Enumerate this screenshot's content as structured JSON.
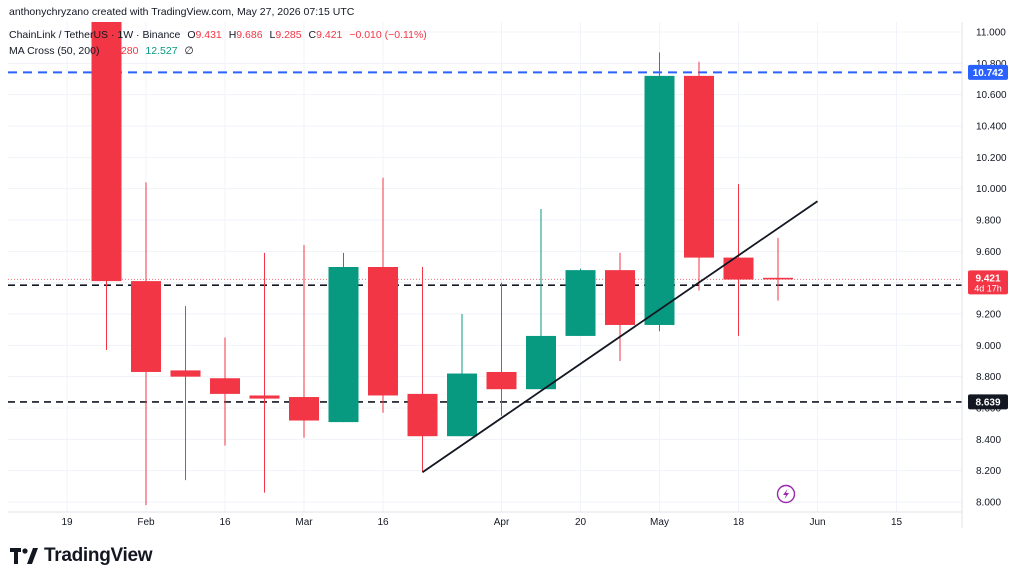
{
  "header": {
    "created_by": "anthonychryzano created with TradingView.com, May 27, 2026 07:15 UTC",
    "symbol": "ChainLink / TetherUS · 1W · Binance",
    "ohlc": {
      "o_label": "O",
      "o_value": "9.431",
      "h_label": "H",
      "h_value": "9.686",
      "l_label": "L",
      "l_value": "9.285",
      "c_label": "C",
      "c_value": "9.421",
      "change": "−0.010 (−0.11%)"
    },
    "indicator": {
      "name": "MA Cross (50, 200)",
      "value1": "14.280",
      "value2": "12.527",
      "value3": "∅"
    }
  },
  "footer": {
    "brand": "TradingView"
  },
  "colors": {
    "up": "#089981",
    "down": "#f23645",
    "blue_line": "#2962ff",
    "dash": "#131722",
    "grid": "#f0f3fa",
    "axis_text": "#131722"
  },
  "chart_data": {
    "type": "candlestick",
    "ylim": [
      7.96,
      11.05
    ],
    "y_ticks": [
      "11.000",
      "10.800",
      "10.600",
      "10.400",
      "10.200",
      "10.000",
      "9.800",
      "9.600",
      "9.400",
      "9.200",
      "9.000",
      "8.800",
      "8.600",
      "8.400",
      "8.200",
      "8.000"
    ],
    "x_ticks": [
      {
        "label": "19",
        "x": 0
      },
      {
        "label": "Feb",
        "x": 2
      },
      {
        "label": "16",
        "x": 4
      },
      {
        "label": "Mar",
        "x": 6
      },
      {
        "label": "16",
        "x": 8
      },
      {
        "label": "Apr",
        "x": 11
      },
      {
        "label": "20",
        "x": 13
      },
      {
        "label": "May",
        "x": 15
      },
      {
        "label": "18",
        "x": 17
      },
      {
        "label": "Jun",
        "x": 19
      },
      {
        "label": "15",
        "x": 21
      }
    ],
    "candles": [
      {
        "x": 1,
        "o": 11.15,
        "h": 11.25,
        "l": 8.97,
        "c": 9.41
      },
      {
        "x": 2,
        "o": 9.41,
        "h": 10.04,
        "l": 7.98,
        "c": 8.83
      },
      {
        "x": 3,
        "o": 8.84,
        "h": 9.25,
        "l": 8.14,
        "c": 8.8
      },
      {
        "x": 4,
        "o": 8.79,
        "h": 9.05,
        "l": 8.36,
        "c": 8.69
      },
      {
        "x": 5,
        "o": 8.68,
        "h": 9.59,
        "l": 8.06,
        "c": 8.66
      },
      {
        "x": 6,
        "o": 8.67,
        "h": 9.64,
        "l": 8.41,
        "c": 8.52
      },
      {
        "x": 7,
        "o": 8.51,
        "h": 9.59,
        "l": 8.51,
        "c": 9.5
      },
      {
        "x": 8,
        "o": 9.5,
        "h": 10.07,
        "l": 8.57,
        "c": 8.68
      },
      {
        "x": 9,
        "o": 8.69,
        "h": 9.5,
        "l": 8.19,
        "c": 8.42
      },
      {
        "x": 10,
        "o": 8.42,
        "h": 9.2,
        "l": 8.42,
        "c": 8.82
      },
      {
        "x": 11,
        "o": 8.83,
        "h": 9.4,
        "l": 8.55,
        "c": 8.72
      },
      {
        "x": 12,
        "o": 8.72,
        "h": 9.87,
        "l": 8.72,
        "c": 9.06
      },
      {
        "x": 13,
        "o": 9.06,
        "h": 9.49,
        "l": 9.06,
        "c": 9.48
      },
      {
        "x": 14,
        "o": 9.48,
        "h": 9.59,
        "l": 8.9,
        "c": 9.13
      },
      {
        "x": 15,
        "o": 9.13,
        "h": 10.87,
        "l": 9.09,
        "c": 10.72
      },
      {
        "x": 16,
        "o": 10.72,
        "h": 10.81,
        "l": 9.35,
        "c": 9.56
      },
      {
        "x": 17,
        "o": 9.56,
        "h": 10.03,
        "l": 9.06,
        "c": 9.42
      },
      {
        "x": 18,
        "o": 9.431,
        "h": 9.686,
        "l": 9.285,
        "c": 9.421
      }
    ],
    "trendline": [
      {
        "x": 9,
        "y": 8.19
      },
      {
        "x": 19,
        "y": 9.92
      }
    ],
    "hlines": [
      {
        "y": 10.742,
        "label": "10.742",
        "style": "blue"
      },
      {
        "y": 9.384,
        "label": "9.384",
        "style": "black"
      },
      {
        "y": 8.639,
        "label": "8.639",
        "style": "black"
      }
    ],
    "last_price": {
      "y": 9.421,
      "label": "9.421",
      "countdown": "4d 17h"
    }
  }
}
